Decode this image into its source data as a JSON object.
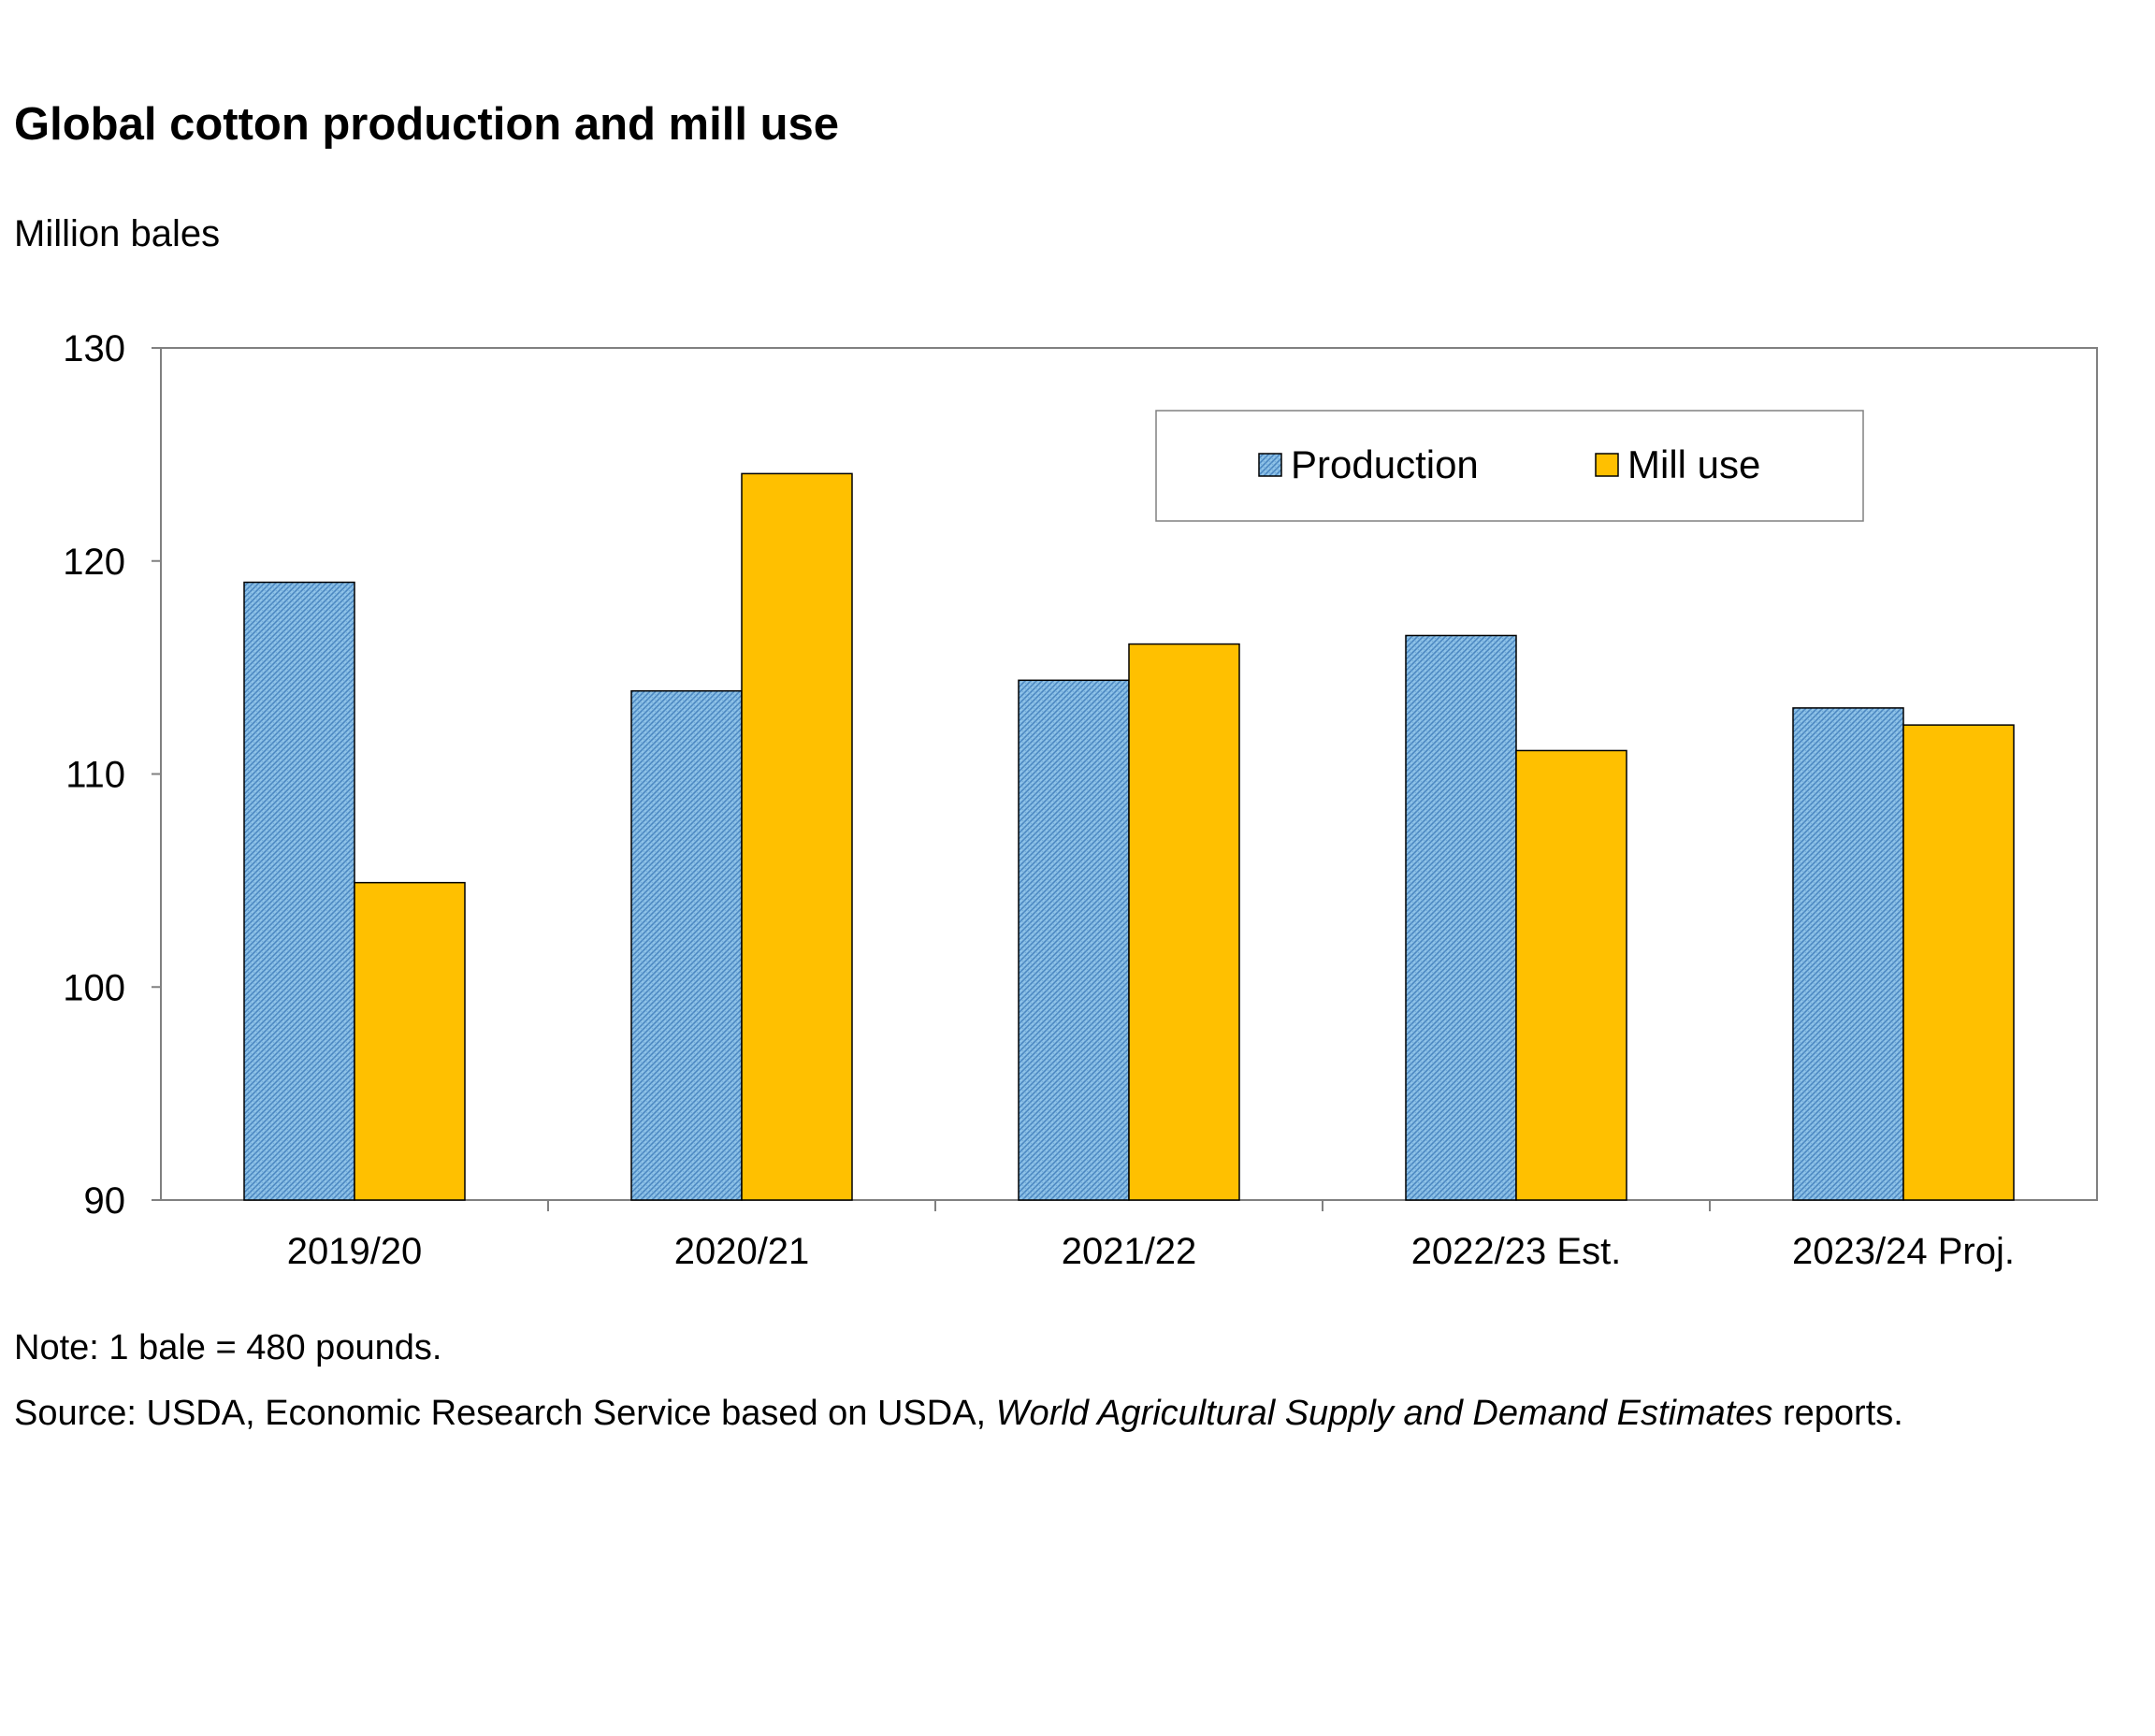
{
  "title": "Global cotton production and mill use",
  "units_label": "Million bales",
  "note": "Note: 1 bale = 480 pounds.",
  "source": {
    "prefix": "Source: USDA, Economic Research Service based on USDA, ",
    "italic": "World Agricultural Supply and Demand Estimates",
    "suffix": " reports."
  },
  "colors": {
    "production": "#8fc3e8",
    "production_hatch": "#4a86c0",
    "mill_use": "#ffc000",
    "axis": "#808080",
    "outline": "#000000"
  },
  "chart_data": {
    "type": "bar",
    "title": "Global cotton production and mill use",
    "xlabel": "",
    "ylabel": "Million bales",
    "ylim": [
      90,
      130
    ],
    "yticks": [
      90,
      100,
      110,
      120,
      130
    ],
    "grid": false,
    "legend_position": "top-right",
    "categories": [
      "2019/20",
      "2020/21",
      "2021/22",
      "2022/23 Est.",
      "2023/24 Proj."
    ],
    "series": [
      {
        "name": "Production",
        "values": [
          119.0,
          113.9,
          114.4,
          116.5,
          113.1
        ]
      },
      {
        "name": "Mill use",
        "values": [
          104.9,
          124.1,
          116.1,
          111.1,
          112.3
        ]
      }
    ]
  }
}
